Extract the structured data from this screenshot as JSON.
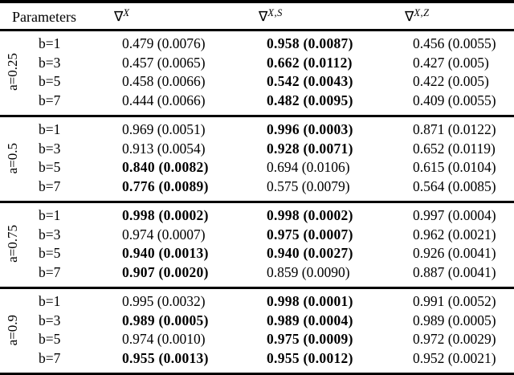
{
  "colors": {
    "background": "#ffffff",
    "text": "#000000",
    "rule": "#000000"
  },
  "table": {
    "header": {
      "parameters_label": "Parameters",
      "columns": [
        {
          "symbol": "∇",
          "superscript": "X"
        },
        {
          "symbol": "∇",
          "superscript": "X,S"
        },
        {
          "symbol": "∇",
          "superscript": "X,Z"
        }
      ]
    },
    "groups": [
      {
        "a_label": "a=0.25",
        "rows": [
          {
            "b_label": "b=1",
            "values": [
              {
                "text": "0.479 (0.0076)",
                "bold": false
              },
              {
                "text": "0.958 (0.0087)",
                "bold": true
              },
              {
                "text": "0.456 (0.0055)",
                "bold": false
              }
            ]
          },
          {
            "b_label": "b=3",
            "values": [
              {
                "text": "0.457 (0.0065)",
                "bold": false
              },
              {
                "text": "0.662 (0.0112)",
                "bold": true
              },
              {
                "text": "0.427 (0.005)",
                "bold": false
              }
            ]
          },
          {
            "b_label": "b=5",
            "values": [
              {
                "text": "0.458 (0.0066)",
                "bold": false
              },
              {
                "text": "0.542 (0.0043)",
                "bold": true
              },
              {
                "text": "0.422 (0.005)",
                "bold": false
              }
            ]
          },
          {
            "b_label": "b=7",
            "values": [
              {
                "text": "0.444 (0.0066)",
                "bold": false
              },
              {
                "text": "0.482 (0.0095)",
                "bold": true
              },
              {
                "text": "0.409 (0.0055)",
                "bold": false
              }
            ]
          }
        ]
      },
      {
        "a_label": "a=0.5",
        "rows": [
          {
            "b_label": "b=1",
            "values": [
              {
                "text": "0.969 (0.0051)",
                "bold": false
              },
              {
                "text": "0.996 (0.0003)",
                "bold": true
              },
              {
                "text": "0.871 (0.0122)",
                "bold": false
              }
            ]
          },
          {
            "b_label": "b=3",
            "values": [
              {
                "text": "0.913 (0.0054)",
                "bold": false
              },
              {
                "text": "0.928 (0.0071)",
                "bold": true
              },
              {
                "text": "0.652 (0.0119)",
                "bold": false
              }
            ]
          },
          {
            "b_label": "b=5",
            "values": [
              {
                "text": "0.840 (0.0082)",
                "bold": true
              },
              {
                "text": "0.694 (0.0106)",
                "bold": false
              },
              {
                "text": "0.615 (0.0104)",
                "bold": false
              }
            ]
          },
          {
            "b_label": "b=7",
            "values": [
              {
                "text": "0.776 (0.0089)",
                "bold": true
              },
              {
                "text": "0.575 (0.0079)",
                "bold": false
              },
              {
                "text": "0.564 (0.0085)",
                "bold": false
              }
            ]
          }
        ]
      },
      {
        "a_label": "a=0.75",
        "rows": [
          {
            "b_label": "b=1",
            "values": [
              {
                "text": "0.998 (0.0002)",
                "bold": true
              },
              {
                "text": "0.998 (0.0002)",
                "bold": true
              },
              {
                "text": "0.997 (0.0004)",
                "bold": false
              }
            ]
          },
          {
            "b_label": "b=3",
            "values": [
              {
                "text": "0.974 (0.0007)",
                "bold": false
              },
              {
                "text": "0.975 (0.0007)",
                "bold": true
              },
              {
                "text": "0.962 (0.0021)",
                "bold": false
              }
            ]
          },
          {
            "b_label": "b=5",
            "values": [
              {
                "text": "0.940 (0.0013)",
                "bold": true
              },
              {
                "text": "0.940 (0.0027)",
                "bold": true
              },
              {
                "text": "0.926 (0.0041)",
                "bold": false
              }
            ]
          },
          {
            "b_label": "b=7",
            "values": [
              {
                "text": "0.907 (0.0020)",
                "bold": true
              },
              {
                "text": "0.859 (0.0090)",
                "bold": false
              },
              {
                "text": "0.887 (0.0041)",
                "bold": false
              }
            ]
          }
        ]
      },
      {
        "a_label": "a=0.9",
        "rows": [
          {
            "b_label": "b=1",
            "values": [
              {
                "text": "0.995 (0.0032)",
                "bold": false
              },
              {
                "text": "0.998 (0.0001)",
                "bold": true
              },
              {
                "text": "0.991 (0.0052)",
                "bold": false
              }
            ]
          },
          {
            "b_label": "b=3",
            "values": [
              {
                "text": "0.989 (0.0005)",
                "bold": true
              },
              {
                "text": "0.989 (0.0004)",
                "bold": true
              },
              {
                "text": "0.989 (0.0005)",
                "bold": false
              }
            ]
          },
          {
            "b_label": "b=5",
            "values": [
              {
                "text": "0.974 (0.0010)",
                "bold": false
              },
              {
                "text": "0.975 (0.0009)",
                "bold": true
              },
              {
                "text": "0.972 (0.0029)",
                "bold": false
              }
            ]
          },
          {
            "b_label": "b=7",
            "values": [
              {
                "text": "0.955 (0.0013)",
                "bold": true
              },
              {
                "text": "0.955 (0.0012)",
                "bold": true
              },
              {
                "text": "0.952 (0.0021)",
                "bold": false
              }
            ]
          }
        ]
      }
    ]
  }
}
